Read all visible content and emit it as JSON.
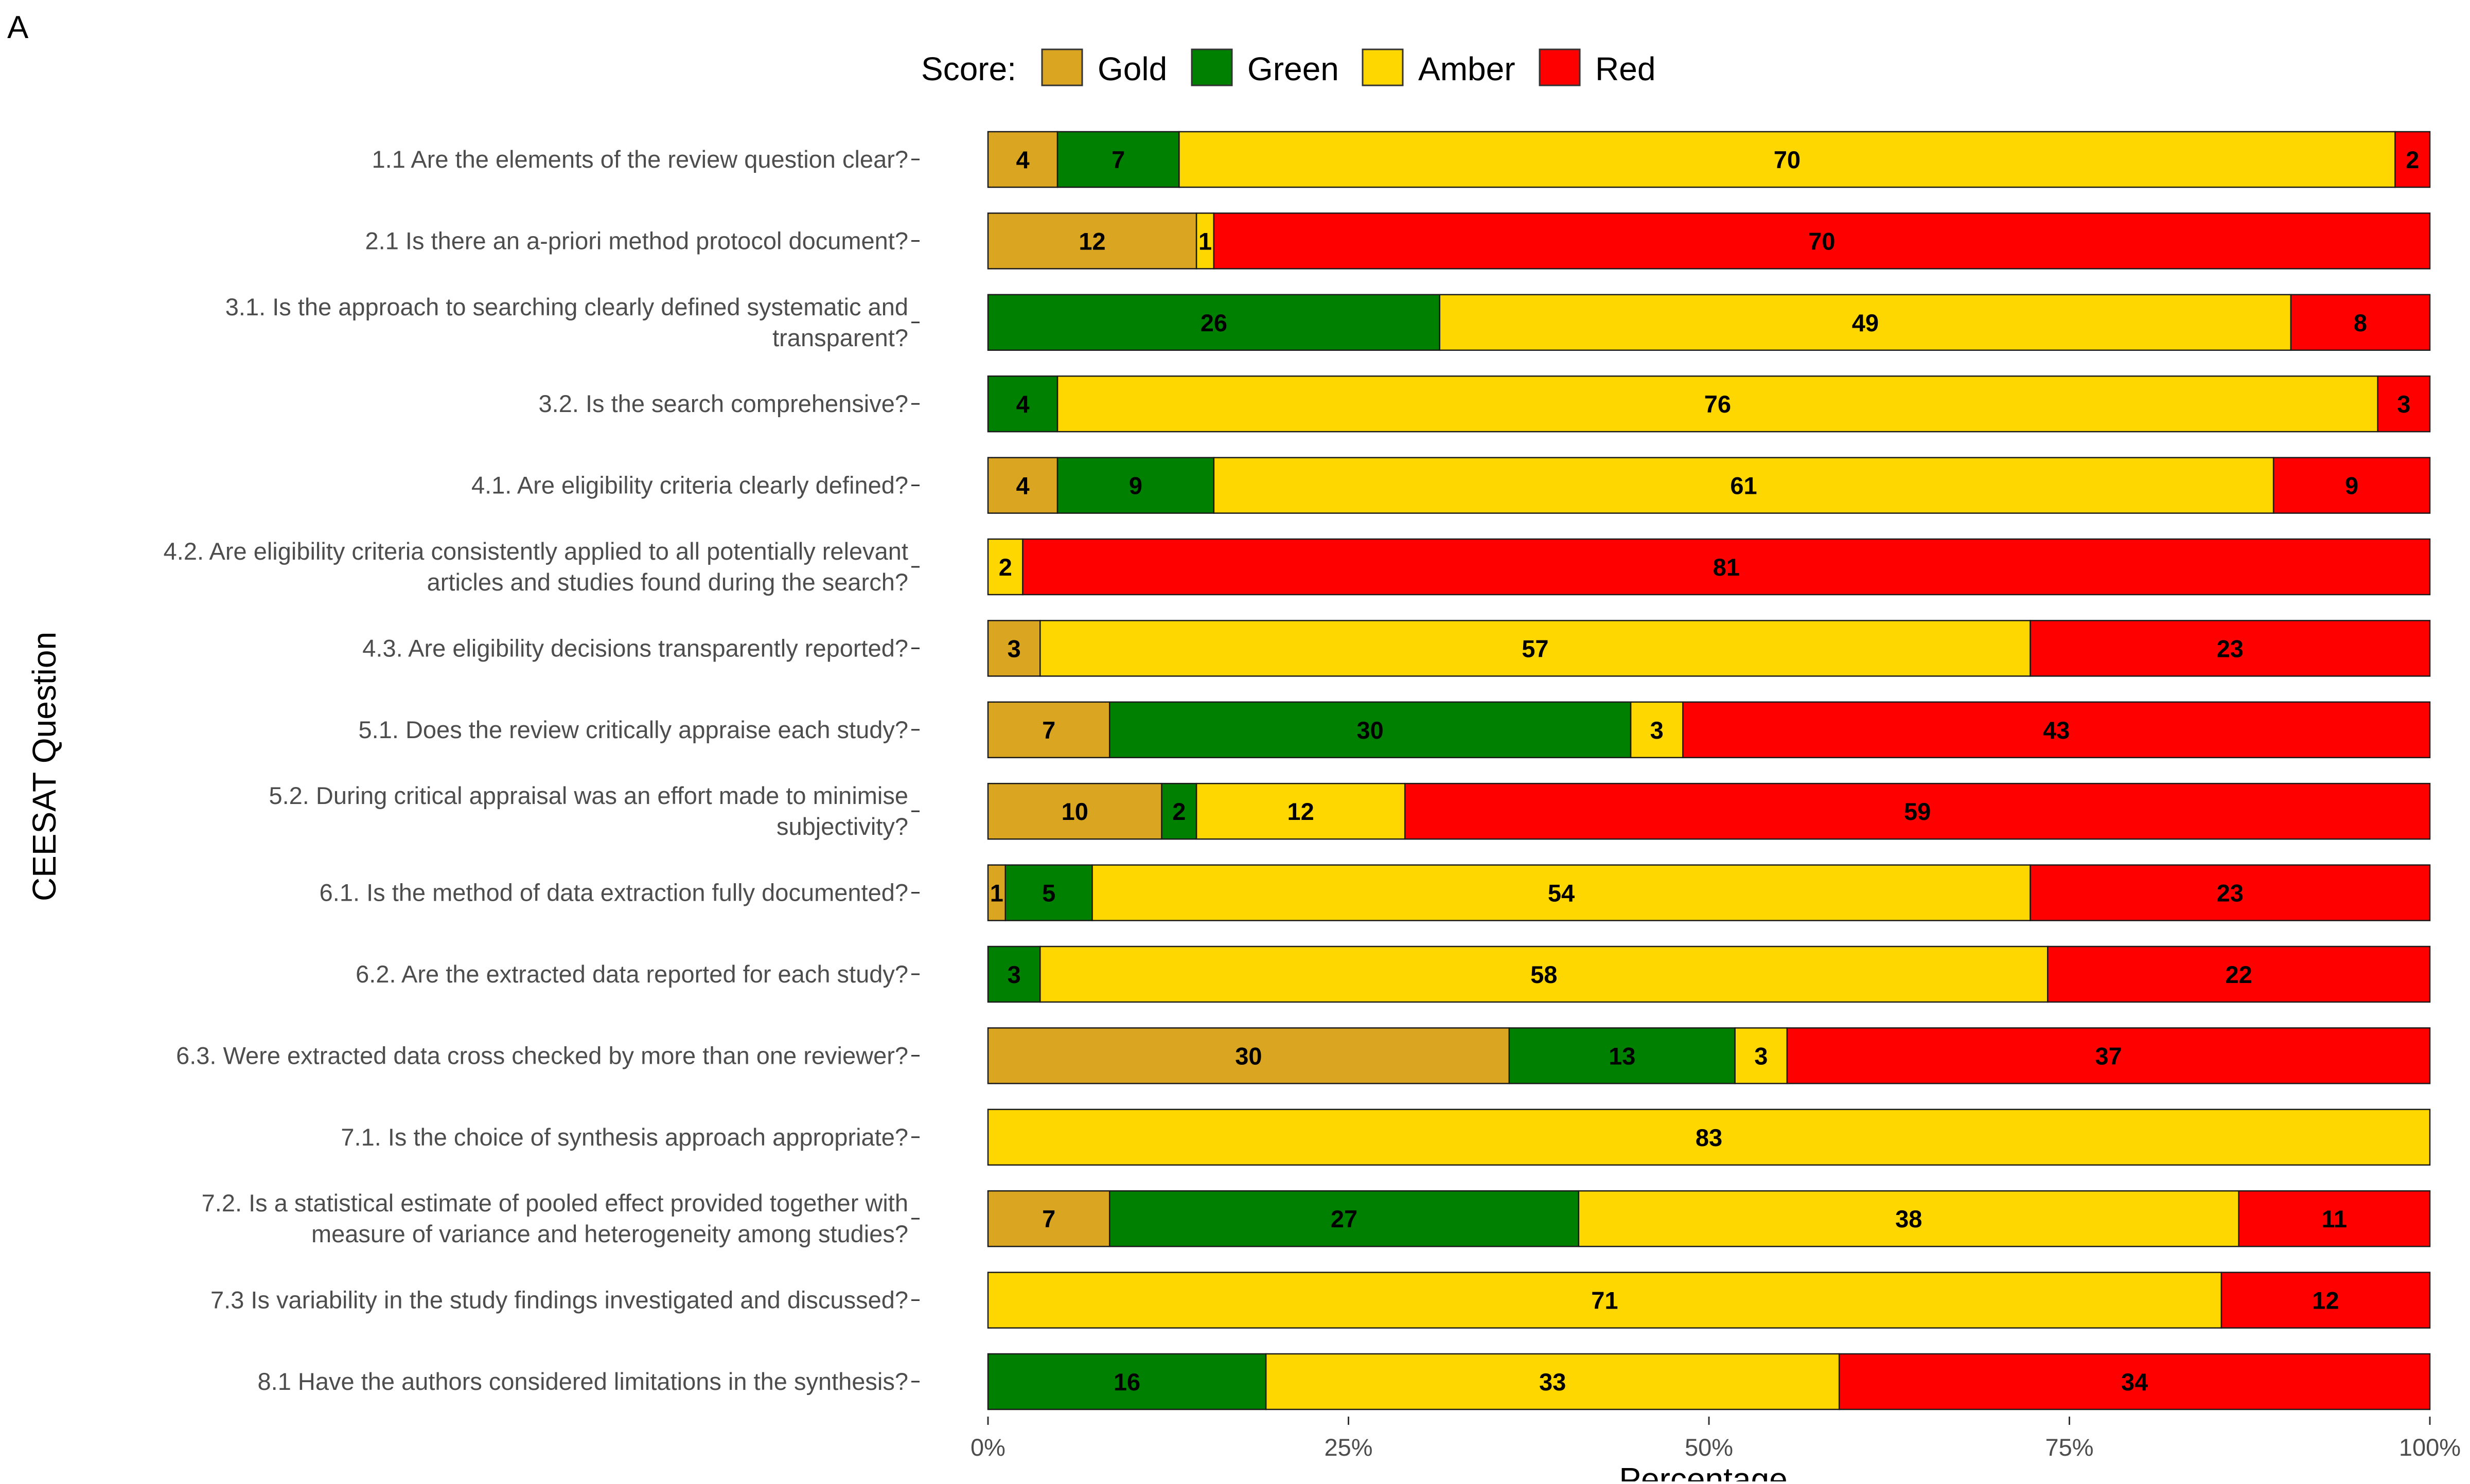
{
  "panel_label": "A",
  "legend_title": "Score:",
  "colors": {
    "Gold": "#DAA520",
    "Green": "#008000",
    "Amber": "#FFD700",
    "Red": "#FF0000"
  },
  "chart_data": {
    "type": "bar",
    "orientation": "horizontal",
    "stacked": true,
    "percent": true,
    "xlabel": "Percentage",
    "ylabel": "CEESAT Question",
    "xlim": [
      0,
      100
    ],
    "xticks": [
      "0%",
      "25%",
      "50%",
      "75%",
      "100%"
    ],
    "legend_position": "top",
    "grid": false,
    "categories": [
      [
        "1.1 Are the elements of the review question clear?"
      ],
      [
        "2.1 Is there an a-priori method protocol document?"
      ],
      [
        "3.1. Is the approach to searching clearly defined systematic and",
        "transparent?"
      ],
      [
        "3.2. Is the search comprehensive?"
      ],
      [
        "4.1. Are eligibility criteria clearly defined?"
      ],
      [
        "4.2. Are eligibility criteria consistently applied to all potentially relevant",
        "articles and studies found during the search?"
      ],
      [
        "4.3. Are eligibility decisions transparently reported?"
      ],
      [
        "5.1. Does the review critically appraise each study?"
      ],
      [
        "5.2. During critical appraisal was an effort made to minimise",
        "subjectivity?"
      ],
      [
        "6.1. Is the method of data extraction fully documented?"
      ],
      [
        "6.2. Are the extracted data reported for each study?"
      ],
      [
        "6.3. Were extracted data cross checked by more than one reviewer?"
      ],
      [
        "7.1. Is the choice of synthesis approach appropriate?"
      ],
      [
        "7.2. Is a statistical estimate of pooled effect provided together with",
        "measure of variance and heterogeneity among studies?"
      ],
      [
        "7.3 Is variability in the study findings investigated and discussed?"
      ],
      [
        "8.1 Have the authors considered limitations in the synthesis?"
      ]
    ],
    "series": [
      {
        "name": "Gold",
        "values": [
          4,
          12,
          0,
          0,
          4,
          0,
          3,
          7,
          10,
          1,
          0,
          30,
          0,
          7,
          0,
          0
        ]
      },
      {
        "name": "Green",
        "values": [
          7,
          0,
          26,
          4,
          9,
          0,
          0,
          30,
          2,
          5,
          3,
          13,
          0,
          27,
          0,
          16
        ]
      },
      {
        "name": "Amber",
        "values": [
          70,
          1,
          49,
          76,
          61,
          2,
          57,
          3,
          12,
          54,
          58,
          3,
          83,
          38,
          71,
          33
        ]
      },
      {
        "name": "Red",
        "values": [
          2,
          70,
          8,
          3,
          9,
          81,
          23,
          43,
          59,
          23,
          22,
          37,
          0,
          11,
          12,
          34
        ]
      }
    ]
  }
}
